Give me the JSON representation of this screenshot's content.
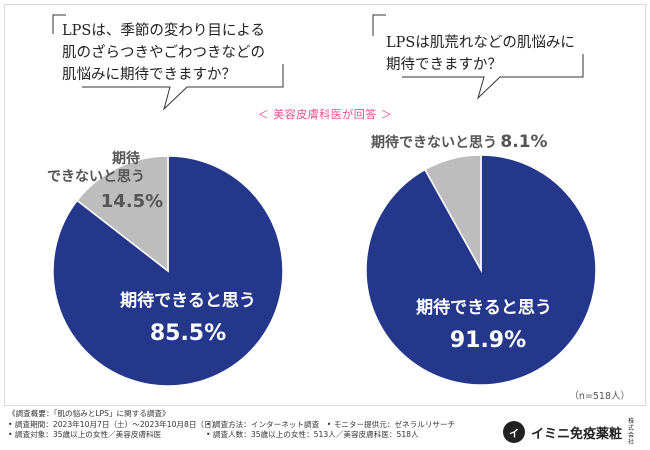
{
  "chart_data": [
    {
      "type": "pie",
      "title": "LPSは、季節の変わり目による肌のざらつきやごわつきなどの肌悩みに期待できますか？",
      "title_lines": [
        "LPSは、季節の変わり目による",
        "肌のざらつきやごわつきなどの",
        "肌悩みに期待できますか？"
      ],
      "slices": [
        {
          "label": "期待できると思う",
          "value": 85.5,
          "value_text": "85.5%",
          "color": "#24378a",
          "label_color": "#ffffff"
        },
        {
          "label": "期待できないと思う",
          "label_lines": [
            "期待",
            "できないと思う"
          ],
          "value": 14.5,
          "value_text": "14.5%",
          "color": "#bdbdbd",
          "label_color": "#555555"
        }
      ]
    },
    {
      "type": "pie",
      "title": "LPSは肌荒れなどの肌悩みに期待できますか？",
      "title_lines": [
        "LPSは肌荒れなどの肌悩みに",
        "期待できますか？"
      ],
      "slices": [
        {
          "label": "期待できると思う",
          "value": 91.9,
          "value_text": "91.9%",
          "color": "#24378a",
          "label_color": "#ffffff"
        },
        {
          "label": "期待できないと思う",
          "value": 8.1,
          "value_text": "8.1%",
          "color": "#bdbdbd",
          "label_color": "#555555"
        }
      ]
    }
  ],
  "respondent_label": "＜ 美容皮膚科医が回答 ＞",
  "n_label": "（n=518人）",
  "footer": {
    "row1": "《調査概要：「肌の悩みとLPS」に関する調査》",
    "row2a": "• 調査期間：2023年10月7日（土）〜2023年10月8日（日）",
    "row2b": "• 調査方法：インターネット調査　• モニター提供元：ゼネラルリサーチ",
    "row3a": "• 調査対象：35歳以上の女性／美容皮膚科医",
    "row3b": "• 調査人数：35歳以上の女性：513人／美容皮膚科医：518人"
  },
  "brand": {
    "name": "イミニ免疫薬粧",
    "suffix": "株式会社",
    "mark_text": "イ"
  }
}
